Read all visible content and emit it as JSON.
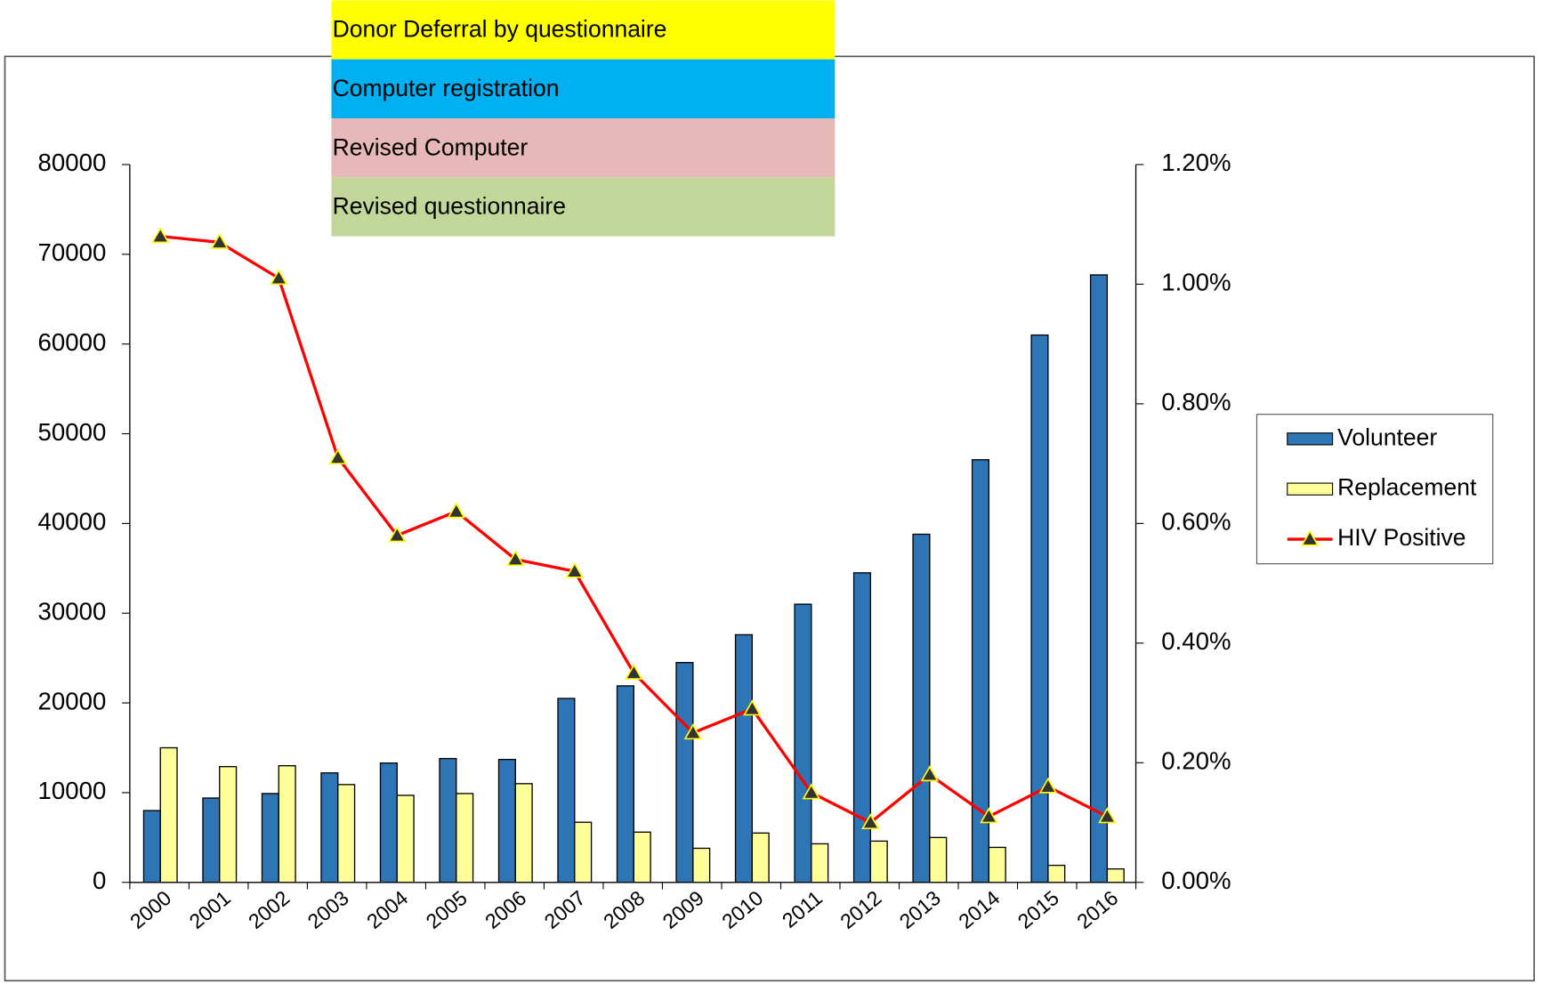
{
  "chart_data": {
    "type": "bar",
    "annotations": [
      {
        "text": "Donor Deferral by questionnaire",
        "background": "#ffff00",
        "color": "#ff0000"
      },
      {
        "text": "Computer  registration",
        "background": "#00b0f0",
        "color": "#000000"
      },
      {
        "text": "Revised Computer",
        "background": "#e6b8b7",
        "color": "#000000"
      },
      {
        "text": "Revised questionnaire",
        "background": "#c4d79b",
        "color": "#c00000"
      }
    ],
    "categories": [
      "2000",
      "2001",
      "2002",
      "2003",
      "2004",
      "2005",
      "2006",
      "2007",
      "2008",
      "2009",
      "2010",
      "2011",
      "2012",
      "2013",
      "2014",
      "2015",
      "2016"
    ],
    "series": [
      {
        "name": "Volunteer",
        "type": "bar",
        "color": "#2e75b6",
        "values": [
          8000,
          9400,
          9900,
          12200,
          13300,
          13800,
          13700,
          20500,
          21900,
          24500,
          27600,
          31000,
          34500,
          38800,
          47100,
          61000,
          67700
        ]
      },
      {
        "name": "Replacement",
        "type": "bar",
        "color": "#ffff99",
        "values": [
          15000,
          12900,
          13000,
          10900,
          9700,
          9900,
          11000,
          6700,
          5600,
          3800,
          5500,
          4300,
          4600,
          5000,
          3900,
          1900,
          1500
        ]
      },
      {
        "name": "HIV Positive",
        "type": "line",
        "axis": "y2",
        "color": "#ff0000",
        "marker_color": "#333333",
        "values": [
          1.08,
          1.07,
          1.01,
          0.71,
          0.58,
          0.62,
          0.54,
          0.52,
          0.35,
          0.25,
          0.29,
          0.15,
          0.1,
          0.18,
          0.11,
          0.16,
          0.11
        ]
      }
    ],
    "ylim": [
      0,
      80000
    ],
    "yticks": [
      0,
      10000,
      20000,
      30000,
      40000,
      50000,
      60000,
      70000,
      80000
    ],
    "y2lim": [
      0,
      1.2
    ],
    "y2ticks": [
      {
        "value": 0,
        "label": "0.00%"
      },
      {
        "value": 0.2,
        "label": "0.20%"
      },
      {
        "value": 0.4,
        "label": "0.40%"
      },
      {
        "value": 0.6,
        "label": "0.60%"
      },
      {
        "value": 0.8,
        "label": "0.80%"
      },
      {
        "value": 1.0,
        "label": "1.00%"
      },
      {
        "value": 1.2,
        "label": "1.20%"
      }
    ],
    "grid": false,
    "legend": "right"
  }
}
